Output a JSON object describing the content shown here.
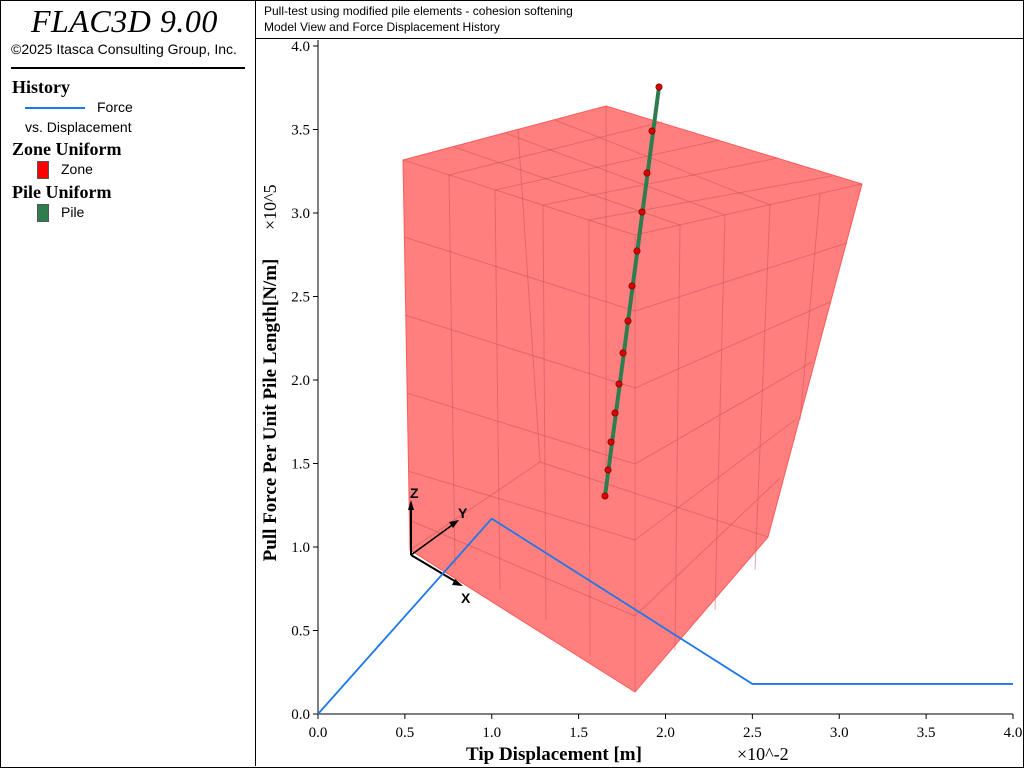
{
  "app": {
    "title": "FLAC3D 9.00",
    "copyright": "©2025 Itasca Consulting Group, Inc."
  },
  "header": {
    "line1": "Pull-test using modified pile elements - cohesion softening",
    "line2": "Model View and Force Displacement History"
  },
  "legend": {
    "history_heading": "History",
    "history_item_line1": "Force",
    "history_item_line2": "vs. Displacement",
    "zone_heading": "Zone Uniform",
    "zone_item": "Zone",
    "pile_heading": "Pile Uniform",
    "pile_item": "Pile"
  },
  "colors": {
    "force_line": "#1f78e8",
    "zone": "#ff0000",
    "zone_fill": "#ff7f7f",
    "pile": "#2e7d4f",
    "pile_node": "#dd0000"
  },
  "axes_triad": {
    "z": "Z",
    "y": "Y",
    "x": "X"
  },
  "chart_data": {
    "type": "line",
    "series": [
      {
        "name": "Force vs. Displacement",
        "x": [
          0.0,
          1.0,
          2.5,
          4.0
        ],
        "y": [
          0.0,
          1.17,
          0.18,
          0.18
        ]
      }
    ],
    "xlabel": "Tip Displacement [m]",
    "x_multiplier": "×10^-2",
    "ylabel": "Pull Force Per Unit Pile Length[N/m]",
    "y_multiplier": "×10^5",
    "xlim": [
      0,
      4
    ],
    "ylim": [
      0,
      4
    ],
    "xticks": [
      "0.0",
      "0.5",
      "1.0",
      "1.5",
      "2.0",
      "2.5",
      "3.0",
      "3.5",
      "4.0"
    ],
    "yticks": [
      "0.0",
      "0.5",
      "1.0",
      "1.5",
      "2.0",
      "2.5",
      "3.0",
      "3.5",
      "4.0"
    ],
    "grid": false
  }
}
